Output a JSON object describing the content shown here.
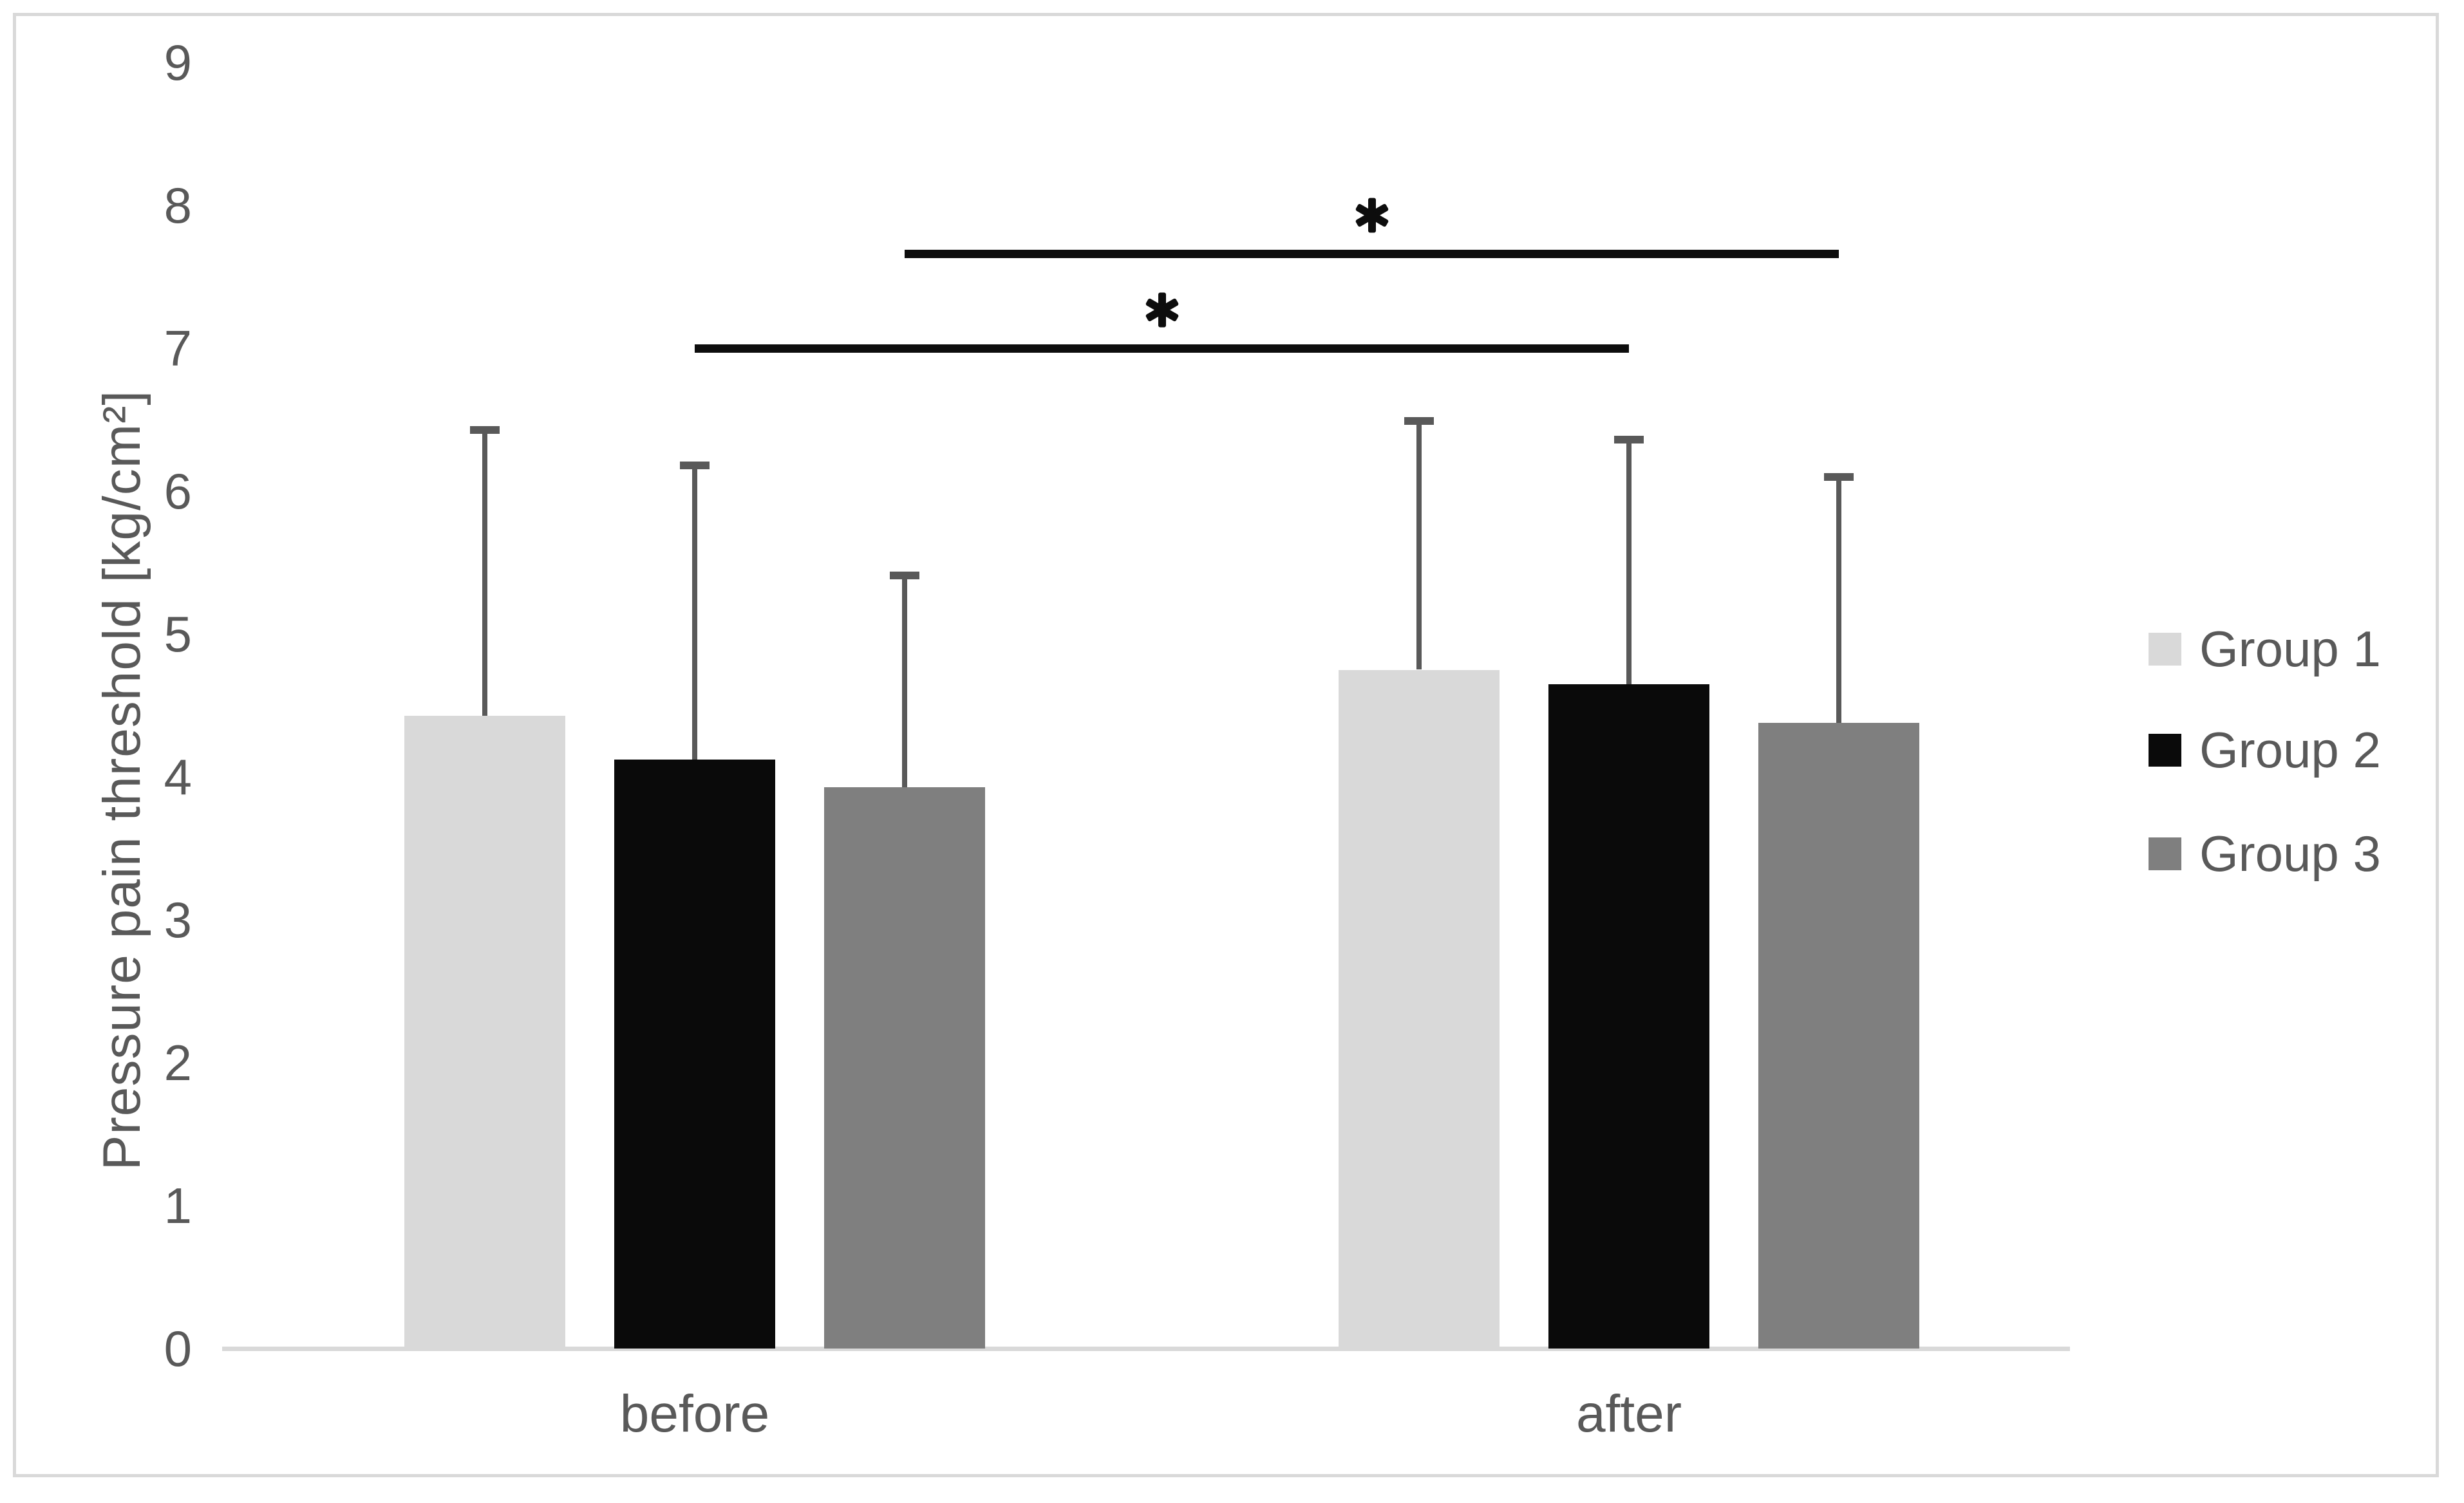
{
  "chart_data": {
    "type": "bar",
    "title": "",
    "categories": [
      "before",
      "after"
    ],
    "series": [
      {
        "name": "Group 1",
        "color": "#d9d9d9",
        "values": [
          4.43,
          4.75
        ],
        "error_plus": [
          2.0,
          1.74
        ]
      },
      {
        "name": "Group 2",
        "color": "#0a0a0a",
        "values": [
          4.12,
          4.65
        ],
        "error_plus": [
          2.06,
          1.71
        ]
      },
      {
        "name": "Group 3",
        "color": "#7f7f7f",
        "values": [
          3.93,
          4.38
        ],
        "error_plus": [
          1.48,
          1.72
        ]
      }
    ],
    "xlabel": "",
    "ylabel": "Pressure pain threshold [kg/cm²]",
    "ylim": [
      0,
      9
    ],
    "yticks": [
      0,
      1,
      2,
      3,
      4,
      5,
      6,
      7,
      8,
      9
    ],
    "grid": false,
    "legend_position": "right",
    "error_bars": "upper-only",
    "significance_markers": [
      {
        "series": "Group 2",
        "from_category": "before",
        "to_category": "after",
        "y": 7.0,
        "label": "*"
      },
      {
        "series": "Group 3",
        "from_category": "before",
        "to_category": "after",
        "y": 7.66,
        "label": "*"
      }
    ]
  },
  "styles": {
    "background": "#ffffff",
    "border_color": "#d9d9d9",
    "axis_color": "#d9d9d9",
    "text_color": "#595959",
    "error_bar_color": "#595959",
    "significance_color": "#0d0d0d"
  }
}
